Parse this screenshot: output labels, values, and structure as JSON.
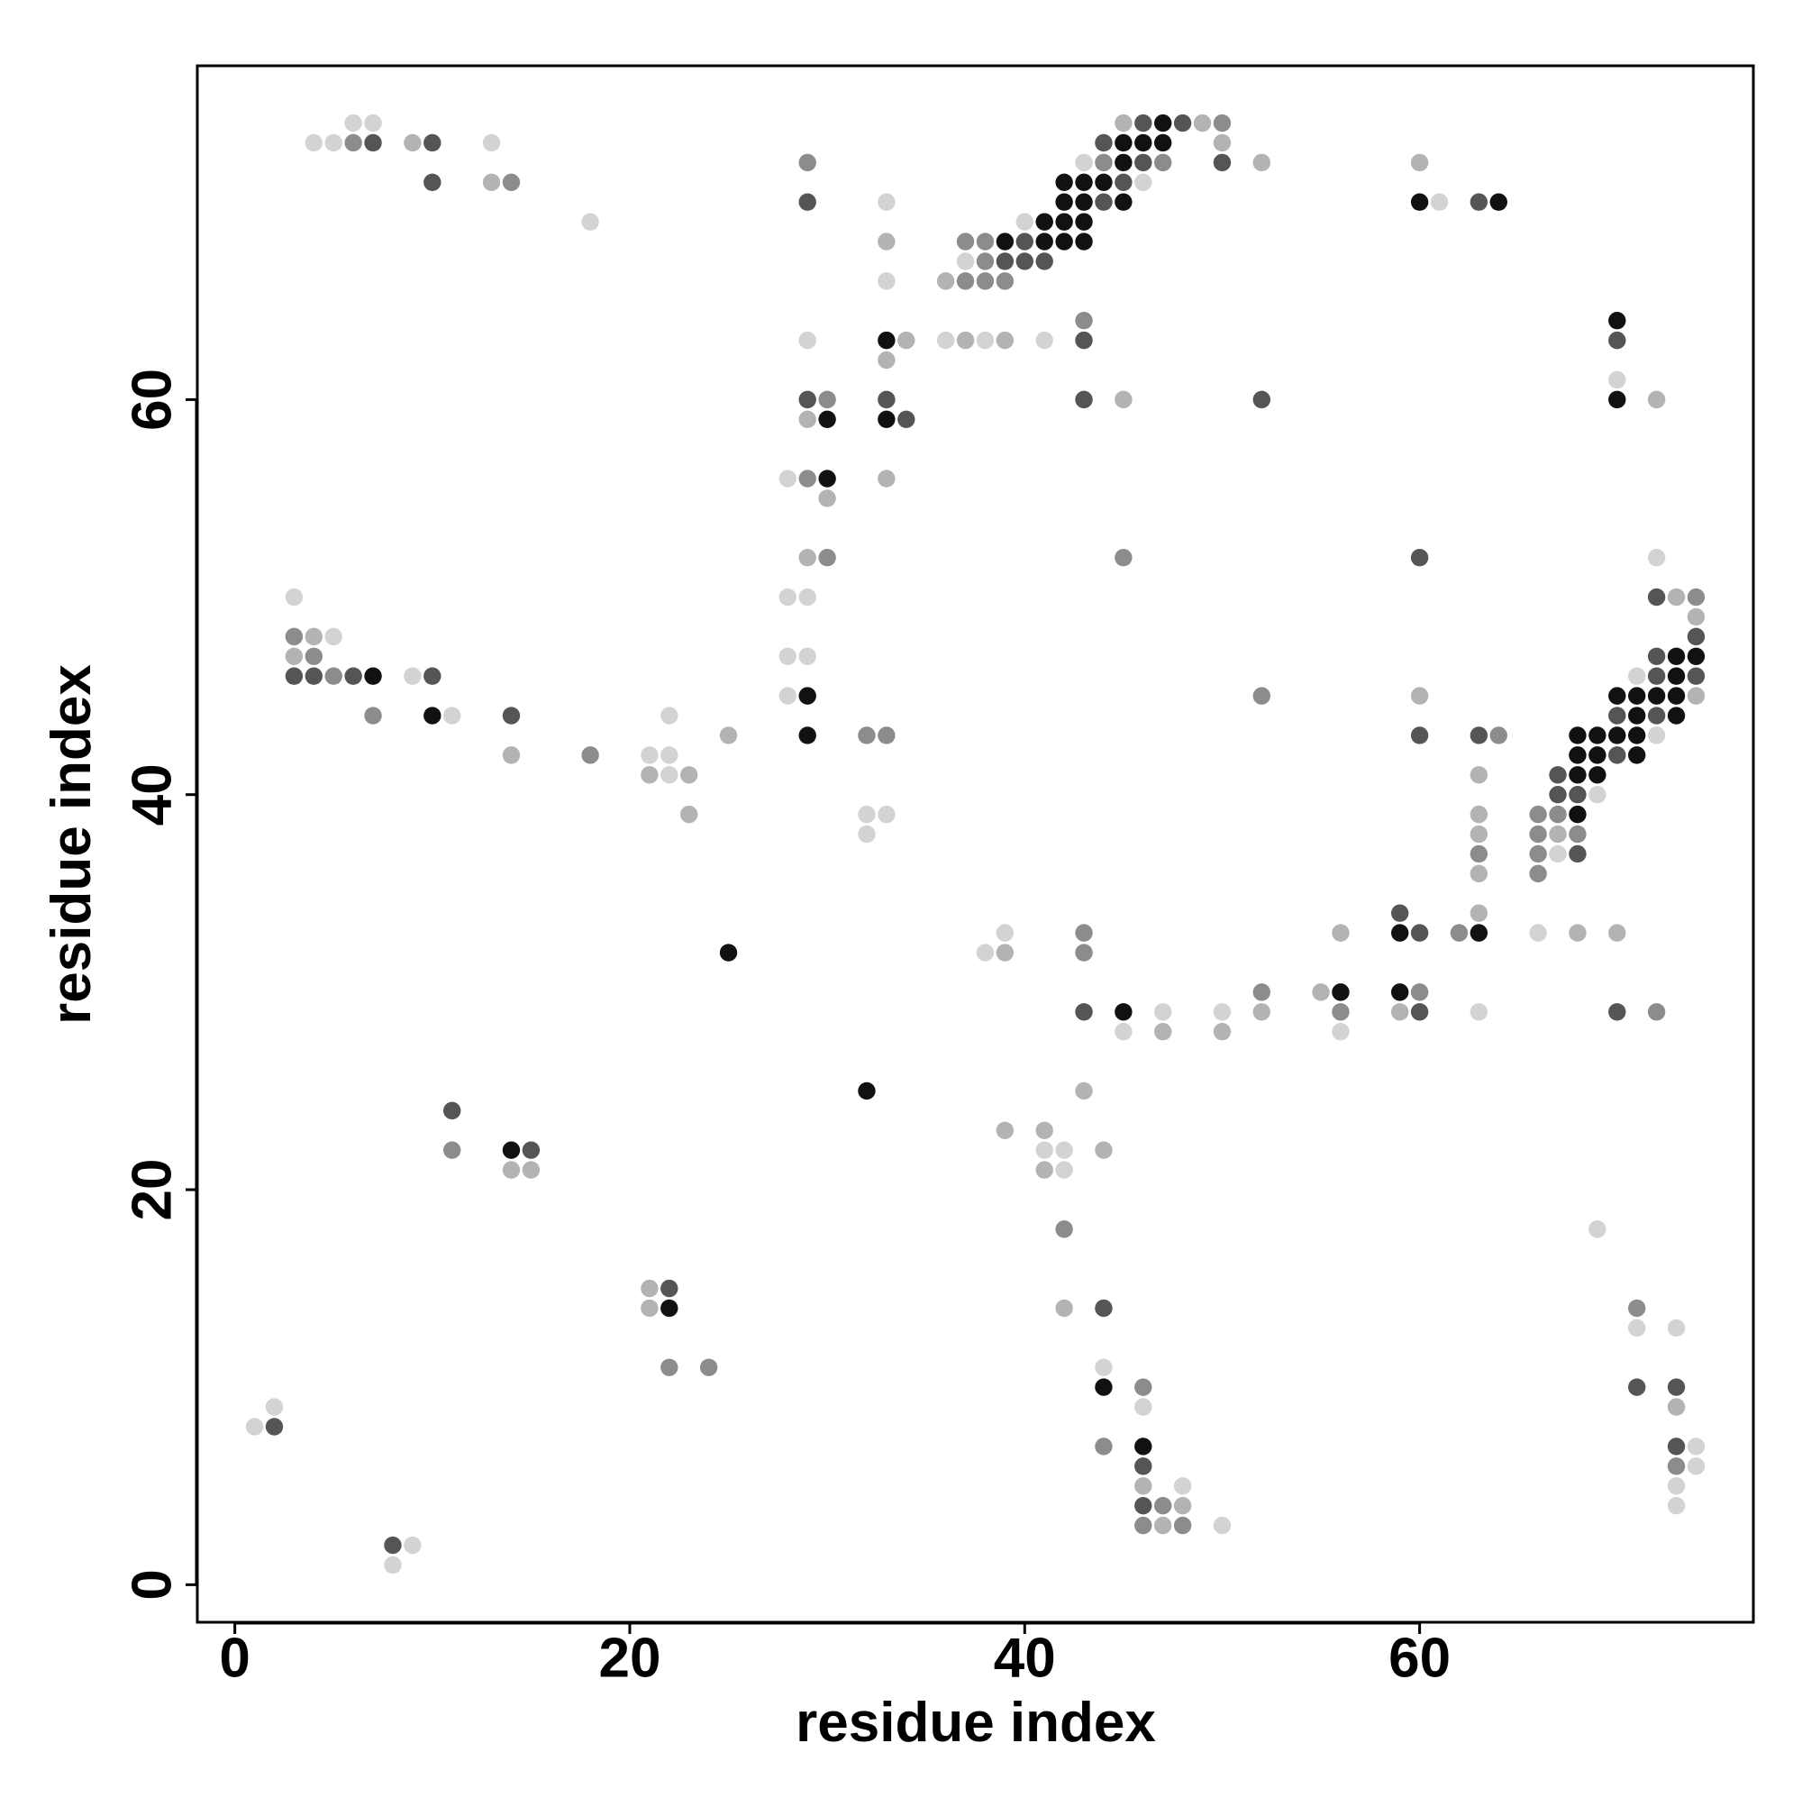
{
  "chart_data": {
    "type": "scatter",
    "xlabel": "residue index",
    "ylabel": "residue index",
    "xlim": [
      -1.9,
      76.9
    ],
    "ylim": [
      -1.9,
      76.9
    ],
    "xticks": [
      0,
      20,
      40,
      60
    ],
    "yticks": [
      0,
      20,
      40,
      60
    ],
    "series": [
      {
        "color": "#d3d3d3",
        "x": [
          6,
          7,
          4,
          5,
          13,
          43,
          46,
          33,
          61,
          18,
          40,
          37,
          33,
          29,
          36,
          38,
          41,
          70,
          28,
          72,
          3,
          28,
          29,
          5,
          28,
          29,
          9,
          71,
          28,
          11,
          22,
          72,
          21,
          22,
          22,
          69,
          32,
          33,
          32,
          67,
          39,
          66,
          38,
          47,
          50,
          63,
          45,
          56,
          41,
          42,
          42,
          69,
          71,
          73,
          44,
          2,
          46,
          1,
          74,
          74,
          73,
          73,
          50,
          9,
          8,
          48
        ],
        "y": [
          74,
          74,
          73,
          73,
          73,
          72,
          71,
          70,
          70,
          69,
          69,
          67,
          66,
          63,
          63,
          63,
          63,
          61,
          56,
          52,
          50,
          50,
          50,
          48,
          47,
          47,
          46,
          46,
          45,
          44,
          44,
          43,
          42,
          42,
          41,
          40,
          39,
          39,
          38,
          37,
          33,
          33,
          32,
          29,
          29,
          29,
          28,
          28,
          22,
          22,
          21,
          18,
          13,
          13,
          11,
          9,
          9,
          8,
          7,
          6,
          5,
          4,
          3,
          2,
          1,
          5
        ]
      },
      {
        "color": "#b3b3b3",
        "x": [
          45,
          49,
          9,
          50,
          52,
          60,
          13,
          33,
          36,
          34,
          37,
          39,
          33,
          45,
          72,
          29,
          33,
          30,
          29,
          73,
          74,
          4,
          3,
          60,
          74,
          25,
          14,
          21,
          23,
          63,
          23,
          63,
          63,
          67,
          63,
          63,
          56,
          68,
          70,
          39,
          55,
          52,
          59,
          47,
          50,
          43,
          39,
          41,
          44,
          15,
          41,
          14,
          21,
          21,
          42,
          73,
          46,
          48,
          47
        ],
        "y": [
          74,
          74,
          73,
          73,
          72,
          72,
          71,
          68,
          66,
          63,
          63,
          63,
          62,
          60,
          60,
          59,
          56,
          55,
          52,
          50,
          49,
          48,
          47,
          45,
          45,
          43,
          42,
          41,
          41,
          41,
          39,
          39,
          38,
          38,
          36,
          34,
          33,
          33,
          33,
          32,
          30,
          29,
          29,
          28,
          28,
          25,
          23,
          23,
          22,
          21,
          21,
          21,
          15,
          14,
          14,
          9,
          5,
          4,
          3
        ]
      },
      {
        "color": "#8c8c8c",
        "x": [
          50,
          6,
          29,
          44,
          47,
          14,
          37,
          38,
          38,
          37,
          38,
          39,
          43,
          30,
          29,
          30,
          45,
          74,
          3,
          4,
          5,
          7,
          32,
          33,
          64,
          18,
          66,
          67,
          66,
          68,
          63,
          66,
          66,
          43,
          62,
          43,
          52,
          60,
          56,
          72,
          11,
          42,
          71,
          22,
          24,
          46,
          44,
          73,
          47,
          46,
          48,
          52
        ],
        "y": [
          74,
          73,
          72,
          72,
          72,
          71,
          68,
          68,
          67,
          66,
          66,
          66,
          64,
          60,
          56,
          52,
          52,
          50,
          48,
          47,
          46,
          44,
          43,
          43,
          43,
          42,
          39,
          39,
          38,
          38,
          37,
          37,
          36,
          33,
          33,
          32,
          30,
          30,
          29,
          29,
          22,
          18,
          14,
          11,
          11,
          10,
          7,
          6,
          4,
          3,
          3,
          45
        ]
      },
      {
        "color": "#555555",
        "x": [
          46,
          48,
          7,
          10,
          44,
          46,
          50,
          10,
          45,
          29,
          44,
          63,
          40,
          39,
          40,
          41,
          43,
          70,
          29,
          33,
          43,
          52,
          34,
          60,
          72,
          74,
          72,
          3,
          4,
          6,
          10,
          72,
          74,
          14,
          70,
          72,
          60,
          63,
          70,
          67,
          67,
          68,
          68,
          59,
          60,
          43,
          60,
          70,
          11,
          15,
          22,
          44,
          71,
          73,
          2,
          73,
          46,
          46,
          8
        ],
        "y": [
          74,
          74,
          73,
          73,
          73,
          72,
          72,
          71,
          71,
          70,
          70,
          70,
          68,
          67,
          67,
          67,
          63,
          63,
          60,
          60,
          60,
          60,
          59,
          52,
          50,
          48,
          47,
          46,
          46,
          46,
          46,
          46,
          46,
          44,
          44,
          44,
          43,
          43,
          42,
          41,
          40,
          40,
          37,
          34,
          33,
          29,
          29,
          29,
          24,
          22,
          15,
          14,
          10,
          10,
          8,
          7,
          6,
          4,
          2
        ]
      },
      {
        "color": "#111111",
        "x": [
          47,
          45,
          46,
          47,
          45,
          42,
          43,
          44,
          42,
          43,
          45,
          60,
          64,
          41,
          42,
          43,
          39,
          41,
          42,
          43,
          70,
          33,
          70,
          30,
          33,
          30,
          73,
          74,
          7,
          73,
          29,
          70,
          71,
          72,
          73,
          10,
          71,
          73,
          29,
          68,
          69,
          70,
          71,
          68,
          69,
          71,
          68,
          69,
          68,
          59,
          63,
          25,
          56,
          59,
          45,
          32,
          14,
          22,
          44,
          46
        ],
        "y": [
          74,
          73,
          73,
          73,
          72,
          71,
          71,
          71,
          70,
          70,
          70,
          70,
          70,
          69,
          69,
          69,
          68,
          68,
          68,
          68,
          64,
          63,
          60,
          59,
          59,
          56,
          47,
          47,
          46,
          46,
          45,
          45,
          45,
          45,
          45,
          44,
          44,
          44,
          43,
          43,
          43,
          43,
          43,
          42,
          42,
          42,
          41,
          41,
          39,
          33,
          33,
          32,
          30,
          30,
          29,
          25,
          22,
          14,
          10,
          7
        ]
      }
    ]
  }
}
